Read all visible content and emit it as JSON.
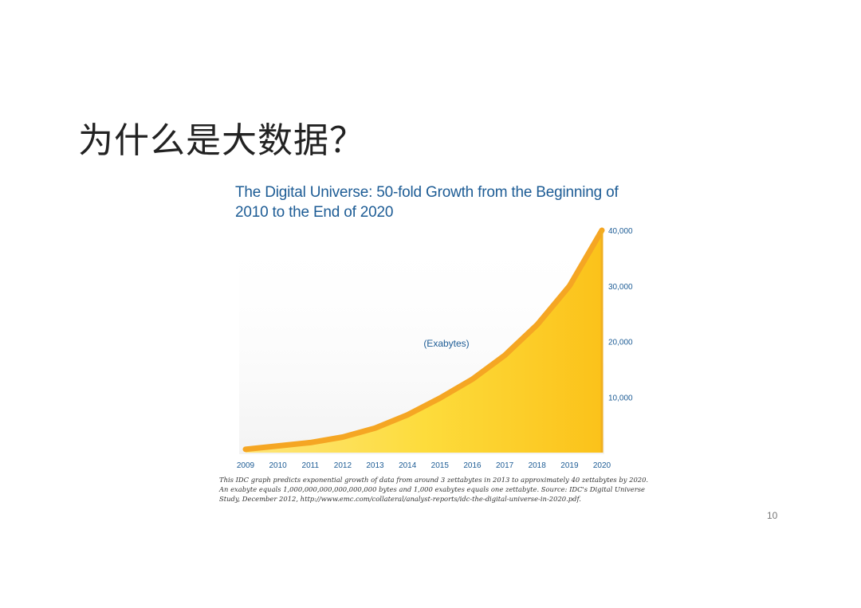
{
  "slide": {
    "title": "为什么是大数据？",
    "page_number": "10",
    "caption": "This IDC graph predicts exponential growth of data from around 3 zettabytes in 2013 to approximately 40 zettabytes by 2020. An exabyte equals 1,000,000,000,000,000,000 bytes and 1,000 exabytes equals one zettabyte. Source: IDC's Digital Universe Study, December 2012, http://www.emc.com/collateral/analyst-reports/idc-the-digital-universe-in-2020.pdf."
  },
  "chart_data": {
    "type": "area",
    "title": "The Digital Universe: 50-fold Growth from the Beginning of 2010 to the End of 2020",
    "annotation": "(Exabytes)",
    "x": [
      "2009",
      "2010",
      "2011",
      "2012",
      "2013",
      "2014",
      "2015",
      "2016",
      "2017",
      "2018",
      "2019",
      "2020"
    ],
    "values": [
      600,
      1200,
      1800,
      2800,
      4400,
      6800,
      9800,
      13200,
      17500,
      23000,
      30000,
      40000
    ],
    "yticks": [
      "10,000",
      "20,000",
      "30,000",
      "40,000"
    ],
    "ylim": [
      0,
      40000
    ],
    "y_axis_position": "right",
    "fill_color": "#fdd835",
    "edge_color": "#f5a623",
    "label_color": "#1d5c95",
    "grid": false
  }
}
